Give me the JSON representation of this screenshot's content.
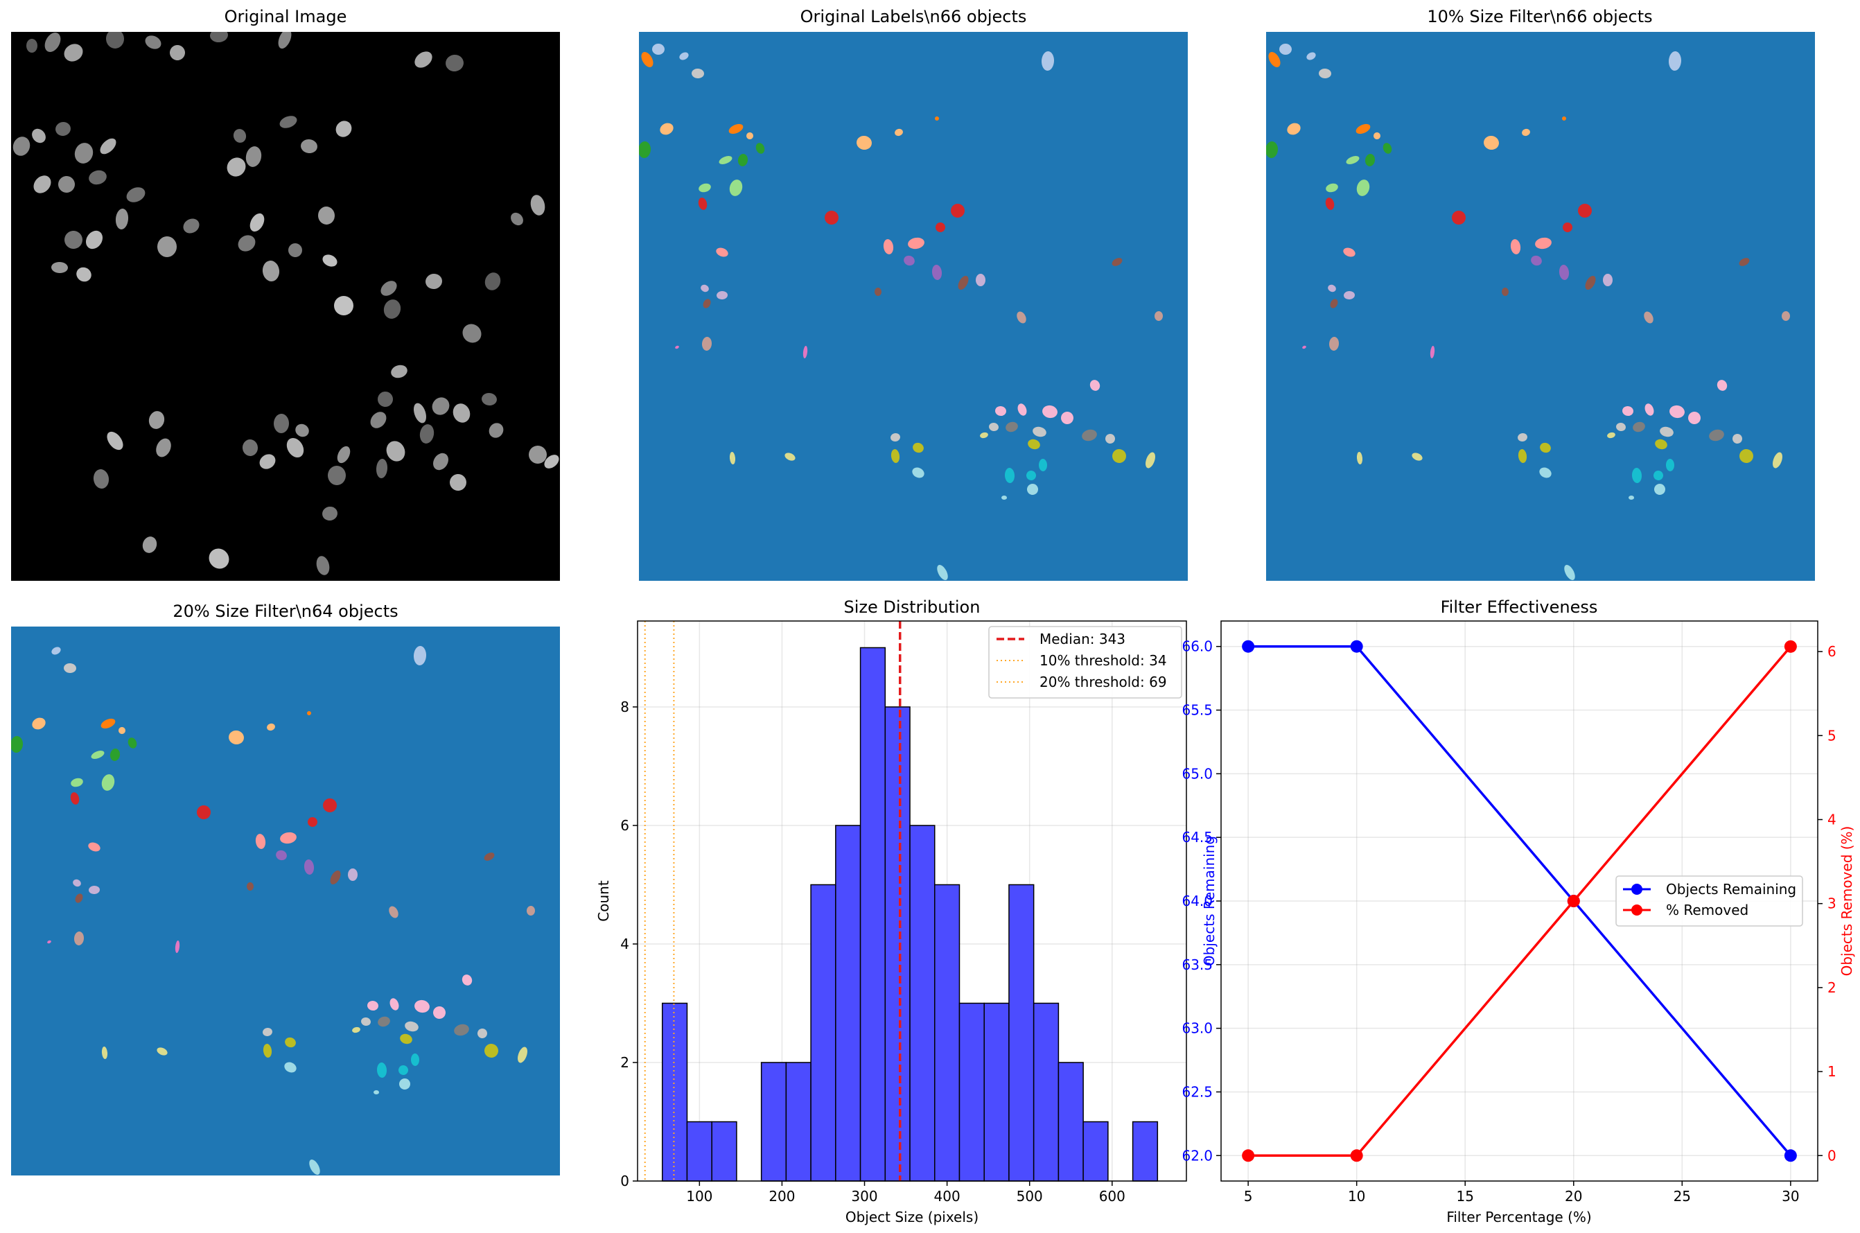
{
  "panels": {
    "original_image": {
      "title": "Original Image"
    },
    "original_labels": {
      "title": "Original Labels\\n66 objects"
    },
    "filter10": {
      "title": "10% Size Filter\\n66 objects"
    },
    "filter20": {
      "title": "20% Size Filter\\n64 objects"
    }
  },
  "colors": {
    "label_background": "#1f77b4",
    "hist_bar": "#4c4cff",
    "median_line": "#e31a1c",
    "threshold_line": "#ffa726",
    "series_remaining": "#0000ff",
    "series_removed": "#ff0000"
  },
  "chart_data": [
    {
      "type": "bar",
      "title": "Size Distribution",
      "xlabel": "Object Size (pixels)",
      "ylabel": "Count",
      "xlim": [
        25,
        690
      ],
      "ylim": [
        0,
        9.45
      ],
      "xticks": [
        "100",
        "200",
        "300",
        "400",
        "500",
        "600"
      ],
      "yticks": [
        "0",
        "2",
        "4",
        "6",
        "8"
      ],
      "bins": [
        {
          "x0": 55,
          "x1": 85,
          "count": 3
        },
        {
          "x0": 85,
          "x1": 115,
          "count": 1
        },
        {
          "x0": 115,
          "x1": 145,
          "count": 1
        },
        {
          "x0": 175,
          "x1": 205,
          "count": 2
        },
        {
          "x0": 205,
          "x1": 235,
          "count": 2
        },
        {
          "x0": 235,
          "x1": 265,
          "count": 5
        },
        {
          "x0": 265,
          "x1": 295,
          "count": 6
        },
        {
          "x0": 295,
          "x1": 325,
          "count": 9
        },
        {
          "x0": 325,
          "x1": 355,
          "count": 8
        },
        {
          "x0": 355,
          "x1": 385,
          "count": 6
        },
        {
          "x0": 385,
          "x1": 415,
          "count": 5
        },
        {
          "x0": 415,
          "x1": 445,
          "count": 3
        },
        {
          "x0": 445,
          "x1": 475,
          "count": 3
        },
        {
          "x0": 475,
          "x1": 505,
          "count": 5
        },
        {
          "x0": 505,
          "x1": 535,
          "count": 3
        },
        {
          "x0": 535,
          "x1": 565,
          "count": 2
        },
        {
          "x0": 565,
          "x1": 595,
          "count": 1
        },
        {
          "x0": 625,
          "x1": 655,
          "count": 1
        }
      ],
      "median": 343,
      "thresholds": [
        34,
        69
      ],
      "legend": [
        "Median: 343",
        "10% threshold: 34",
        "20% threshold: 69"
      ],
      "legend_position": "upper right",
      "grid": true
    },
    {
      "type": "line",
      "title": "Filter Effectiveness",
      "xlabel": "Filter Percentage (%)",
      "ylabel_left": "Objects Remaining",
      "ylabel_right": "Objects Removed (%)",
      "x": [
        5,
        10,
        20,
        30
      ],
      "xlim": [
        3.75,
        31.25
      ],
      "xticks": [
        "5",
        "10",
        "15",
        "20",
        "25",
        "30"
      ],
      "ylim_left": [
        61.8,
        66.2
      ],
      "yticks_left": [
        "62.0",
        "62.5",
        "63.0",
        "63.5",
        "64.0",
        "64.5",
        "65.0",
        "65.5",
        "66.0"
      ],
      "ylim_right": [
        -0.303,
        6.364
      ],
      "yticks_right": [
        "0",
        "1",
        "2",
        "3",
        "4",
        "5",
        "6"
      ],
      "series": [
        {
          "name": "Objects Remaining",
          "axis": "left",
          "values": [
            66,
            66,
            64,
            62
          ]
        },
        {
          "name": "% Removed",
          "axis": "right",
          "values": [
            0,
            0,
            3.03,
            6.06
          ]
        }
      ],
      "legend_position": "center right",
      "grid": true
    }
  ]
}
